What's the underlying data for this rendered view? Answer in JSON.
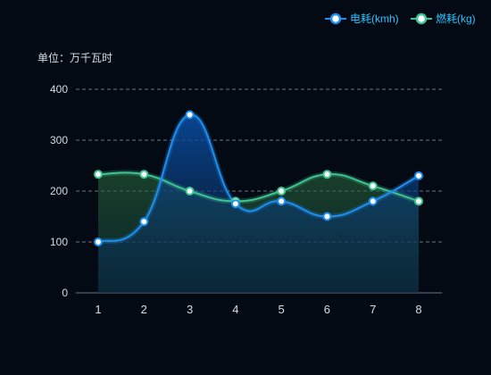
{
  "chart_data": {
    "type": "line",
    "unit_label": "单位：万千瓦时",
    "categories": [
      "1",
      "2",
      "3",
      "4",
      "5",
      "6",
      "7",
      "8"
    ],
    "ylim": [
      0,
      400
    ],
    "yticks": [
      0,
      100,
      200,
      300,
      400
    ],
    "grid": true,
    "legend_position": "top-right",
    "series": [
      {
        "name": "电耗(kmh)",
        "values": [
          100,
          140,
          350,
          175,
          180,
          150,
          180,
          230
        ],
        "color": "#1e8ff0"
      },
      {
        "name": "燃耗(kg)",
        "values": [
          233,
          233,
          200,
          180,
          200,
          233,
          210,
          180
        ],
        "color": "#3fc592"
      }
    ]
  },
  "colors": {
    "background": "#040a14",
    "grid": "#6b7480",
    "text": "#d6dde6",
    "legend_text": "#28c6ff"
  }
}
